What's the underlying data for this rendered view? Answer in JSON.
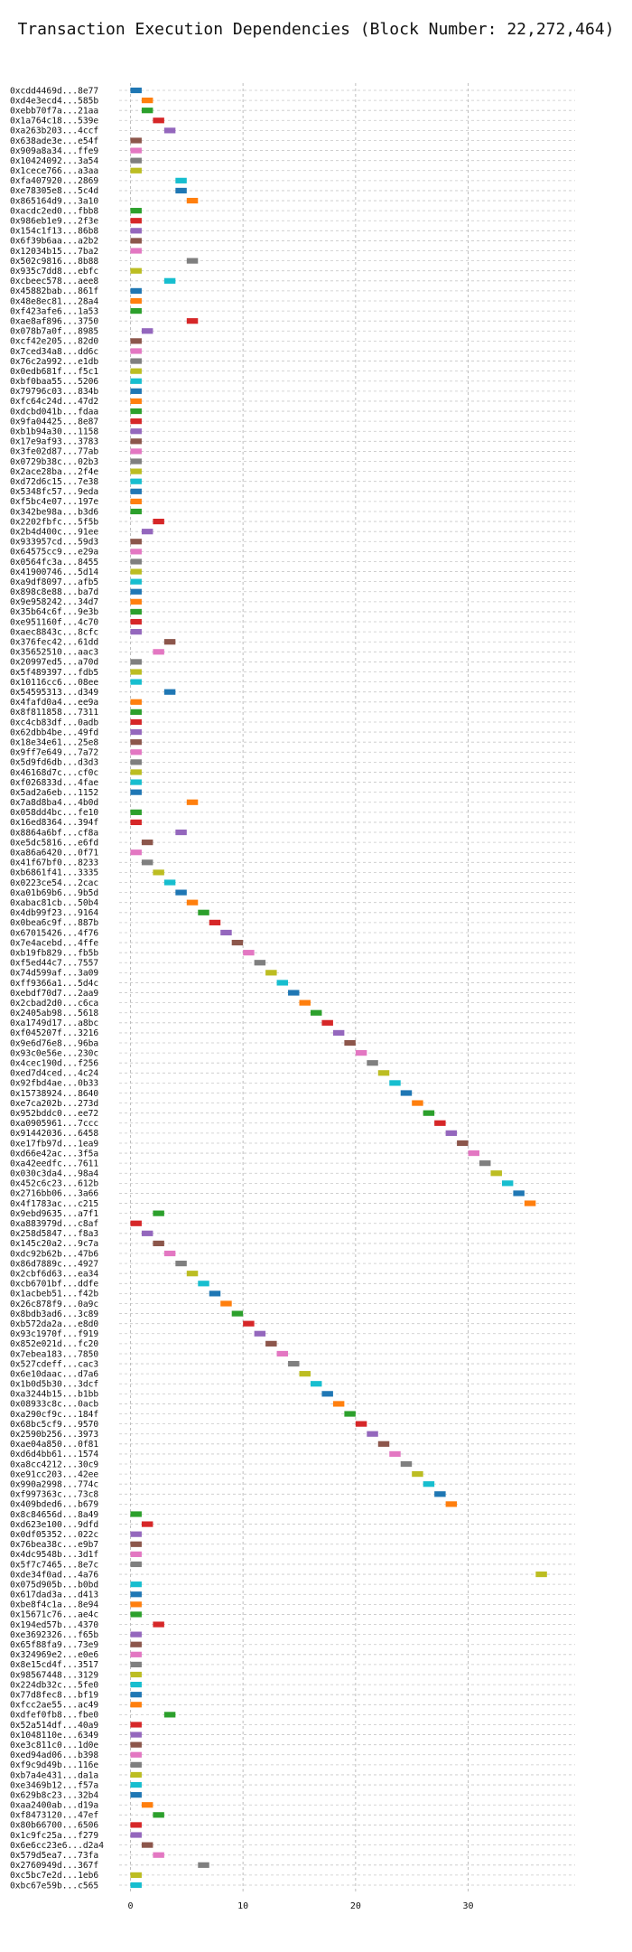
{
  "chart_data": {
    "type": "bar",
    "orientation": "horizontal",
    "title": "Transaction Execution Dependencies (Block Number: 22,272,464)",
    "xlabel": "",
    "ylabel": "",
    "xlim": [
      -1,
      39.5
    ],
    "xticks": [
      0,
      10,
      20,
      30
    ],
    "grid": true,
    "palette": [
      "#1f77b4",
      "#ff7f0e",
      "#2ca02c",
      "#d62728",
      "#9467bd",
      "#8c564b",
      "#e377c2",
      "#7f7f7f",
      "#bcbd22",
      "#17becf"
    ],
    "categories": [
      "0xcdd4469d...8e77",
      "0xd4e3ecd4...585b",
      "0xebb70f7a...21aa",
      "0x1a764c18...539e",
      "0xa263b203...4ccf",
      "0x638ade3e...e54f",
      "0x909a8a34...ffe9",
      "0x10424092...3a54",
      "0x1cece766...a3aa",
      "0xfa407920...2869",
      "0xe78305e8...5c4d",
      "0x865164d9...3a10",
      "0xacdc2ed0...fbb8",
      "0x986eb1e9...2f3e",
      "0x154c1f13...86b8",
      "0x6f39b6aa...a2b2",
      "0x12034b15...7ba2",
      "0x502c9816...8b88",
      "0x935c7dd8...ebfc",
      "0xcbeec578...aee8",
      "0x45882bab...861f",
      "0x48e8ec81...28a4",
      "0xf423afe6...1a53",
      "0xae8af896...3750",
      "0x078b7a0f...8985",
      "0xcf42e205...82d0",
      "0x7ced34a8...dd6c",
      "0x76c2a992...e1db",
      "0x0edb681f...f5c1",
      "0xbf0baa55...5206",
      "0x79796c03...834b",
      "0xfc64c24d...47d2",
      "0xdcbd041b...fdaa",
      "0x9fa04425...8e87",
      "0xb1b94a30...1158",
      "0x17e9af93...3783",
      "0x3fe02d87...77ab",
      "0x0729b38c...02b3",
      "0x2ace28ba...2f4e",
      "0xd72d6c15...7e38",
      "0x5348fc57...9eda",
      "0xf5bc4e07...197e",
      "0x342be98a...b3d6",
      "0x2202fbfc...5f5b",
      "0x2b4d400c...91ee",
      "0x933957cd...59d3",
      "0x64575cc9...e29a",
      "0x0564fc3a...8455",
      "0x41900746...5d14",
      "0xa9df8097...afb5",
      "0x898c8e88...ba7d",
      "0x9e958242...34d7",
      "0x35b64c6f...9e3b",
      "0xe951160f...4c70",
      "0xaec8843c...8cfc",
      "0x376fec42...61dd",
      "0x35652510...aac3",
      "0x20997ed5...a70d",
      "0x5f489397...fdb5",
      "0x10116cc6...08ee",
      "0x54595313...d349",
      "0x4fafd0a4...ee9a",
      "0x8f811858...7311",
      "0xc4cb83df...0adb",
      "0x62dbb4be...49fd",
      "0x18e34e61...25e8",
      "0x9ff7e649...7a72",
      "0x5d9fd6db...d3d3",
      "0x46168d7c...cf0c",
      "0xf026833d...4fae",
      "0x5ad2a6eb...1152",
      "0x7a8d8ba4...4b0d",
      "0x058dd4bc...fe10",
      "0x16ed8364...394f",
      "0x8864a6bf...cf8a",
      "0xe5dc5816...e6fd",
      "0xa86a6420...0f71",
      "0x41f67bf0...8233",
      "0xb6861f41...3335",
      "0x0223ce54...2cac",
      "0xa01b69b6...9b5d",
      "0xabac81cb...50b4",
      "0x4db99f23...9164",
      "0x0bea6c9f...887b",
      "0x67015426...4f76",
      "0x7e4acebd...4ffe",
      "0xb19fb829...fb5b",
      "0xf5ed44c7...7557",
      "0x74d599af...3a09",
      "0xff9366a1...5d4c",
      "0xebdf70d7...2aa9",
      "0x2cbad2d0...c6ca",
      "0x2405ab98...5618",
      "0xa1749d17...a8bc",
      "0xf045207f...3216",
      "0x9e6d76e8...96ba",
      "0x93c0e56e...230c",
      "0x4cec190d...f256",
      "0xed7d4ced...4c24",
      "0x92fbd4ae...0b33",
      "0x15738924...8640",
      "0xe7ca202b...273d",
      "0x952bddc0...ee72",
      "0xa0905961...7ccc",
      "0x91442036...6458",
      "0xe17fb97d...1ea9",
      "0xd66e42ac...3f5a",
      "0xa42eedfc...7611",
      "0x030c3da4...98a4",
      "0x452c6c23...612b",
      "0x2716bb06...3a66",
      "0x4f1783ac...c215",
      "0x9ebd9635...a7f1",
      "0xa883979d...c8af",
      "0x258d5847...f8a3",
      "0x145c20a2...9c7a",
      "0xdc92b62b...47b6",
      "0x86d7889c...4927",
      "0x2cbf6d63...ea34",
      "0xcb6701bf...ddfe",
      "0x1acbeb51...f42b",
      "0x26c878f9...0a9c",
      "0x8bdb3ad6...3c89",
      "0xb572da2a...e8d0",
      "0x93c1970f...f919",
      "0x852e021d...fc20",
      "0x7ebea183...7850",
      "0x527cdeff...cac3",
      "0x6e10daac...d7a6",
      "0x1b0d5b30...3dcf",
      "0xa3244b15...b1bb",
      "0x08933c8c...0acb",
      "0xa290cf9c...184f",
      "0x68bc5cf9...9570",
      "0x2590b256...3973",
      "0xae04a850...0f81",
      "0xd6d4bb61...1574",
      "0xa8cc4212...30c9",
      "0xe91cc203...42ee",
      "0x990a2998...774c",
      "0xf997363c...73c8",
      "0x409bded6...b679",
      "0x8c84656d...8a49",
      "0xd623e100...9dfd",
      "0x0df05352...022c",
      "0x76bea38c...e9b7",
      "0x4dc9548b...3d1f",
      "0x5f7c7465...8e7c",
      "0xde34f0ad...4a76",
      "0x075d905b...b0bd",
      "0x617dad3a...d413",
      "0xbe8f4c1a...8e94",
      "0x15671c76...ae4c",
      "0x194ed57b...4370",
      "0xe3692326...f65b",
      "0x65f88fa9...73e9",
      "0x324969e2...e0e6",
      "0x8e15cd4f...3517",
      "0x98567448...3129",
      "0x224db32c...5fe0",
      "0x77d8fec8...bf19",
      "0xfcc2ae55...ac49",
      "0xdfef0fb8...fbe0",
      "0x52a514df...40a9",
      "0x1048110e...6349",
      "0xe3c811c0...1d0e",
      "0xed94ad06...b398",
      "0xf9c9d49b...116e",
      "0xb7a4e431...da1a",
      "0xe3469b12...f57a",
      "0x629b8c23...32b4",
      "0xaa2400ab...d19a",
      "0xf8473120...47ef",
      "0x80b66700...6506",
      "0x1c9fc25a...f279",
      "0x6e6cc23e6...d2a4",
      "0x579d5ea7...73fa",
      "0x2760949d...367f",
      "0xc5bc7e2d...1eb6",
      "0xbc67e59b...c565"
    ],
    "start": [
      0,
      1,
      1,
      2,
      3,
      0,
      0,
      0,
      0,
      4,
      4,
      5,
      0,
      0,
      0,
      0,
      0,
      5,
      0,
      3,
      0,
      0,
      0,
      5,
      1,
      0,
      0,
      0,
      0,
      0,
      0,
      0,
      0,
      0,
      0,
      0,
      0,
      0,
      0,
      0,
      0,
      0,
      0,
      2,
      1,
      0,
      0,
      0,
      0,
      0,
      0,
      0,
      0,
      0,
      0,
      3,
      2,
      0,
      0,
      0,
      3,
      0,
      0,
      0,
      0,
      0,
      0,
      0,
      0,
      0,
      0,
      5,
      0,
      0,
      4,
      1,
      0,
      1,
      2,
      3,
      4,
      5,
      6,
      7,
      8,
      9,
      10,
      11,
      12,
      13,
      14,
      15,
      16,
      17,
      18,
      19,
      20,
      21,
      22,
      23,
      24,
      25,
      26,
      27,
      28,
      29,
      30,
      31,
      32,
      33,
      34,
      35,
      2,
      0,
      1,
      2,
      3,
      4,
      5,
      6,
      7,
      8,
      9,
      10,
      11,
      12,
      13,
      14,
      15,
      16,
      17,
      18,
      19,
      20,
      21,
      22,
      23,
      24,
      25,
      26,
      27,
      28,
      0,
      1,
      0,
      0,
      0,
      0,
      36,
      0,
      0,
      0,
      0,
      2,
      0,
      0,
      0,
      0,
      0,
      0,
      0,
      0,
      3,
      0,
      0,
      0,
      0,
      0,
      0,
      0,
      0,
      1,
      2,
      0,
      0,
      1,
      2,
      6,
      0,
      0
    ],
    "duration": 1,
    "color_index": [
      0,
      1,
      2,
      3,
      4,
      5,
      6,
      7,
      8,
      9,
      0,
      1,
      2,
      3,
      4,
      5,
      6,
      7,
      8,
      9,
      0,
      1,
      2,
      3,
      4,
      5,
      6,
      7,
      8,
      9,
      0,
      1,
      2,
      3,
      4,
      5,
      6,
      7,
      8,
      9,
      0,
      1,
      2,
      3,
      4,
      5,
      6,
      7,
      8,
      9,
      0,
      1,
      2,
      3,
      4,
      5,
      6,
      7,
      8,
      9,
      0,
      1,
      2,
      3,
      4,
      5,
      6,
      7,
      8,
      9,
      0,
      1,
      2,
      3,
      4,
      5,
      6,
      7,
      8,
      9,
      0,
      1,
      2,
      3,
      4,
      5,
      6,
      7,
      8,
      9,
      0,
      1,
      2,
      3,
      4,
      5,
      6,
      7,
      8,
      9,
      0,
      1,
      2,
      3,
      4,
      5,
      6,
      7,
      8,
      9,
      0,
      1,
      2,
      3,
      4,
      5,
      6,
      7,
      8,
      9,
      0,
      1,
      2,
      3,
      4,
      5,
      6,
      7,
      8,
      9,
      0,
      1,
      2,
      3,
      4,
      5,
      6,
      7,
      8,
      9,
      0,
      1,
      2,
      3,
      4,
      5,
      6,
      7,
      8,
      9,
      0,
      1,
      2,
      3,
      4,
      5,
      6,
      7,
      8,
      9,
      0,
      1,
      2,
      3,
      4,
      5,
      6,
      7,
      8,
      9,
      0,
      1,
      2,
      3,
      4,
      5,
      6,
      7,
      8,
      9
    ]
  }
}
